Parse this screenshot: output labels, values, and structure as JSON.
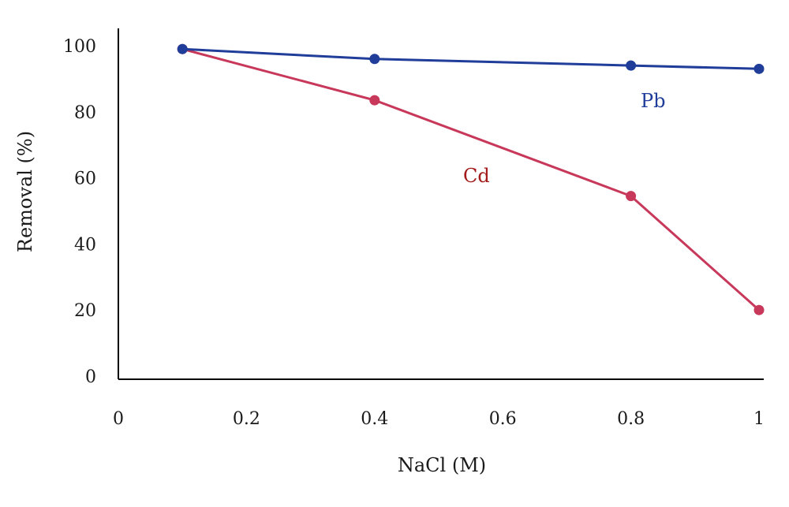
{
  "chart_data": {
    "type": "line",
    "title": "",
    "xlabel": "NaCl (M)",
    "ylabel": "Removal (%)",
    "xlim": [
      0,
      1
    ],
    "ylim": [
      0,
      100
    ],
    "x_ticks": [
      "0",
      "0.2",
      "0.4",
      "0.6",
      "0.8",
      "1"
    ],
    "y_ticks": [
      "0",
      "20",
      "40",
      "60",
      "80",
      "100"
    ],
    "grid": false,
    "legend": "none",
    "x": [
      0.1,
      0.4,
      0.8,
      1.0
    ],
    "series": [
      {
        "name": "Pb",
        "color": "#1f3d99",
        "values": [
          99,
          96,
          94,
          93
        ]
      },
      {
        "name": "Cd",
        "color": "#c8385a",
        "label_color": "#a31a1a",
        "values": [
          99,
          83.5,
          54.5,
          20
        ]
      }
    ]
  }
}
